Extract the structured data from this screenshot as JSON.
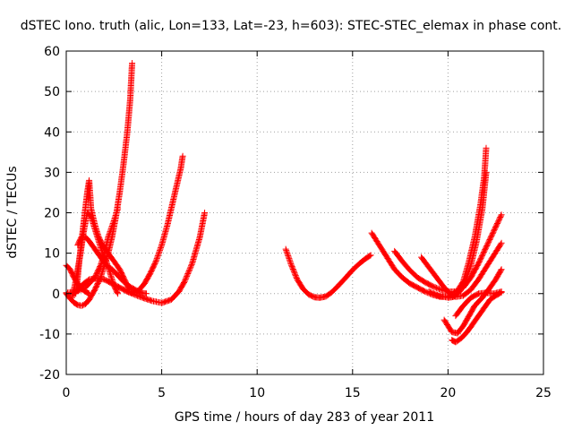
{
  "chart_data": {
    "type": "scatter",
    "title": "dSTEC Iono. truth (alic, Lon=133, Lat=-23, h=603): STEC-STEC_elemax in phase cont.",
    "xlabel": "GPS time / hours of day 283 of year 2011",
    "ylabel": "dSTEC  / TECUs",
    "xlim": [
      0,
      25
    ],
    "ylim": [
      -20,
      60
    ],
    "xticks": [
      "0",
      "5",
      "10",
      "15",
      "20",
      "25"
    ],
    "yticks": [
      "-20",
      "-10",
      "0",
      "10",
      "20",
      "30",
      "40",
      "50",
      "60"
    ],
    "grid": true,
    "marker": "+",
    "color": "#ff0000",
    "series": [
      {
        "x": [
          0.0,
          0.2,
          0.4,
          0.6,
          0.8,
          1.0,
          1.2
        ],
        "y": [
          7,
          6,
          4,
          2.5,
          1.2,
          0.5,
          0
        ]
      },
      {
        "x": [
          0.0,
          0.2,
          0.4,
          0.6,
          0.8,
          1.0,
          1.2,
          1.5,
          1.8,
          2.0,
          2.2,
          2.4,
          2.6,
          2.8,
          3.0,
          3.2,
          3.35,
          3.45
        ],
        "y": [
          0,
          -1.2,
          -2.2,
          -2.8,
          -3,
          -2.6,
          -1.5,
          1,
          4,
          7,
          10,
          14,
          19,
          25,
          32,
          40,
          48,
          57
        ]
      },
      {
        "x": [
          0.3,
          0.45,
          0.6,
          0.75,
          0.9,
          1.1,
          1.3,
          1.5,
          1.7,
          1.9,
          2.1,
          2.3,
          2.5,
          2.7
        ],
        "y": [
          -1,
          2,
          6,
          10,
          15,
          20,
          19,
          16,
          13,
          10,
          8,
          5,
          2,
          0
        ]
      },
      {
        "x": [
          0.5,
          0.6,
          0.7,
          0.8,
          0.9,
          1.0,
          1.1,
          1.2,
          1.3,
          1.5,
          1.7,
          1.9,
          2.2,
          2.5,
          2.8,
          3.0,
          3.3
        ],
        "y": [
          0,
          4,
          9,
          13,
          17,
          21,
          25,
          28,
          21,
          17,
          14,
          12,
          10,
          8,
          6,
          4,
          1
        ]
      },
      {
        "x": [
          0.6,
          0.8,
          1.0,
          1.2,
          1.5,
          1.8,
          2.1,
          2.4,
          2.7,
          3.0,
          3.3,
          3.6,
          3.9,
          4.2
        ],
        "y": [
          12,
          14,
          14,
          13,
          11,
          9,
          7,
          6,
          4.5,
          3,
          1.8,
          1,
          0.2,
          0
        ]
      },
      {
        "x": [
          0.0,
          0.5,
          1.0,
          1.5,
          1.8,
          2.0,
          2.2,
          2.5,
          2.7
        ],
        "y": [
          0.2,
          0.5,
          1.5,
          4,
          7,
          10,
          14,
          18,
          21
        ]
      },
      {
        "x": [
          0.4,
          0.8,
          1.2,
          1.6,
          2.0,
          2.4,
          2.8,
          3.2,
          3.6,
          4.0,
          4.5,
          5.0,
          5.5,
          5.9,
          6.2,
          6.6,
          7.0,
          7.25
        ],
        "y": [
          0,
          2,
          3.5,
          3.8,
          3.5,
          2.5,
          1.5,
          0.5,
          -0.3,
          -1,
          -1.8,
          -2.3,
          -1.5,
          0.5,
          3,
          7.5,
          14,
          20
        ]
      },
      {
        "x": [
          3.2,
          3.5,
          3.8,
          4.1,
          4.4,
          4.7,
          5.0,
          5.3,
          5.6,
          5.8,
          6.0,
          6.1
        ],
        "y": [
          0.5,
          0.2,
          0.8,
          2.5,
          5,
          8,
          12,
          17,
          23,
          27,
          31,
          34
        ]
      },
      {
        "x": [
          11.5,
          11.8,
          12.1,
          12.4,
          12.7,
          13.0,
          13.3,
          13.6,
          13.9,
          14.2,
          14.5,
          14.8,
          15.1,
          15.4,
          15.7,
          15.95
        ],
        "y": [
          11,
          7,
          3.5,
          1.2,
          -0.2,
          -0.9,
          -1,
          -0.7,
          0.3,
          1.7,
          3.2,
          4.8,
          6.3,
          7.6,
          8.7,
          9.5
        ]
      },
      {
        "x": [
          16.0,
          16.4,
          16.8,
          17.2,
          17.6,
          18.0,
          18.4,
          18.8,
          19.2,
          19.6,
          20.0,
          20.4,
          20.8,
          21.1,
          21.4,
          21.7,
          21.9,
          22.0
        ],
        "y": [
          15,
          12,
          9,
          6,
          4,
          2.5,
          1.5,
          0.5,
          -0.3,
          -0.8,
          -0.7,
          0,
          3,
          8,
          14,
          22,
          29,
          36
        ]
      },
      {
        "x": [
          17.2,
          17.6,
          18.0,
          18.4,
          18.8,
          19.2,
          19.6,
          20.0,
          20.4,
          20.8,
          21.2,
          21.6,
          22.0,
          22.4,
          22.8
        ],
        "y": [
          10.5,
          8,
          5.8,
          4,
          2.8,
          1.8,
          1,
          0.5,
          0.5,
          1.5,
          4,
          7.5,
          11.5,
          15.5,
          19.5
        ]
      },
      {
        "x": [
          18.6,
          19.0,
          19.4,
          19.8,
          20.1,
          20.4,
          20.8,
          21.2,
          21.6,
          22.0,
          22.4,
          22.8
        ],
        "y": [
          9,
          6.5,
          4,
          1.5,
          0,
          -0.8,
          -0.5,
          1,
          3.5,
          6.5,
          9.5,
          12.5
        ]
      },
      {
        "x": [
          19.8,
          20.0,
          20.2,
          20.5,
          20.8,
          21.1,
          21.4,
          21.8,
          22.2,
          22.5,
          22.8
        ],
        "y": [
          -6.5,
          -8,
          -9.5,
          -9.8,
          -8,
          -5.5,
          -3,
          -1,
          1.5,
          3.5,
          6
        ]
      },
      {
        "x": [
          20.2,
          20.4,
          20.7,
          21.0,
          21.3,
          21.6,
          21.9,
          22.2,
          22.5,
          22.8
        ],
        "y": [
          -11.5,
          -12,
          -11,
          -9.5,
          -7.5,
          -5.5,
          -3.5,
          -1.5,
          -0.5,
          0.3
        ]
      },
      {
        "x": [
          20.4,
          20.8,
          21.2,
          21.6,
          22.0,
          22.4,
          22.8
        ],
        "y": [
          -5.5,
          -3,
          -1,
          0,
          0.2,
          0,
          0.5
        ]
      },
      {
        "x": [
          19.0,
          19.5,
          20.0,
          20.3,
          20.6,
          20.9,
          21.2,
          21.5,
          21.8,
          22.0
        ],
        "y": [
          0.5,
          -0.5,
          -1,
          -0.8,
          0.5,
          3,
          7,
          13,
          21,
          30
        ]
      }
    ]
  }
}
